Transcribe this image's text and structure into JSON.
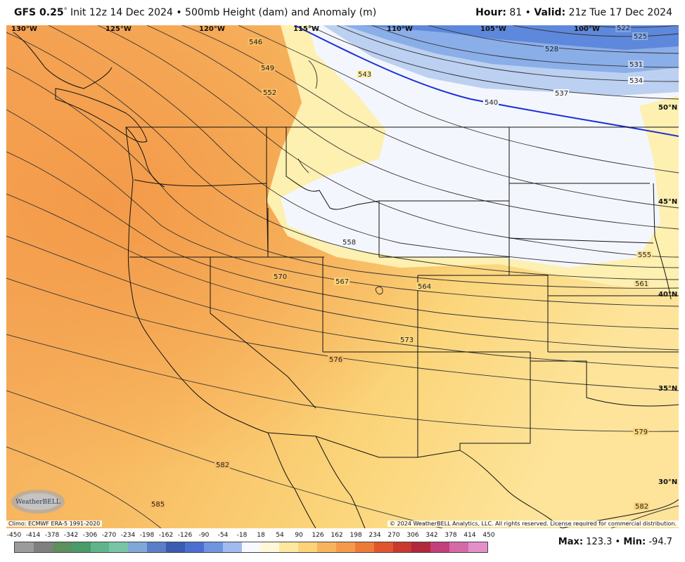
{
  "header": {
    "model": "GFS 0.25",
    "degree": "°",
    "subtitle": " Init 12z 14 Dec 2024 • 500mb Height (dam) and Anomaly (m)",
    "hour_label": "Hour:",
    "hour_value": " 81 • ",
    "valid_label": "Valid:",
    "valid_value": " 21z Tue 17 Dec 2024"
  },
  "map": {
    "lon_labels": [
      "130°W",
      "125°W",
      "120°W",
      "115°W",
      "110°W",
      "105°W",
      "100°W"
    ],
    "lat_labels": [
      "50°N",
      "45°N",
      "40°N",
      "35°N",
      "30°N"
    ],
    "contour_labels": [
      "522",
      "525",
      "528",
      "531",
      "534",
      "537",
      "540",
      "543",
      "546",
      "549",
      "552",
      "555",
      "558",
      "561",
      "564",
      "567",
      "570",
      "573",
      "576",
      "579",
      "582",
      "582",
      "585"
    ]
  },
  "footer": {
    "climo": "Climo: ECMWF ERA-5 1991-2020",
    "copyright": "© 2024 WeatherBELL Analytics, LLC. All rights reserved. License required for commercial distribution.",
    "logo_text": "WeatherBELL",
    "colorbar_ticks": [
      "-450",
      "-414",
      "-378",
      "-342",
      "-306",
      "-270",
      "-234",
      "-198",
      "-162",
      "-126",
      "-90",
      "-54",
      "-18",
      "18",
      "54",
      "90",
      "126",
      "162",
      "198",
      "234",
      "270",
      "306",
      "342",
      "378",
      "414",
      "450"
    ],
    "colorbar_colors": [
      "#9b9b9b",
      "#7f7f7f",
      "#5e8f5e",
      "#4a9a6a",
      "#5fb48a",
      "#79c4a6",
      "#7fa7d8",
      "#5a7fc8",
      "#3b5bb0",
      "#4a6fd0",
      "#6f95e0",
      "#9fbbef",
      "#f7f9ff",
      "#fff8d8",
      "#fde8a0",
      "#fcd27a",
      "#f8b45c",
      "#f49a4a",
      "#ee7a3a",
      "#e0552e",
      "#c93a2c",
      "#b0283a",
      "#c23f7a",
      "#d46aa8",
      "#e291c8",
      "#eeb8e0"
    ],
    "max_label": "Max:",
    "max_value": " 123.3 • ",
    "min_label": "Min:",
    "min_value": " -94.7"
  }
}
